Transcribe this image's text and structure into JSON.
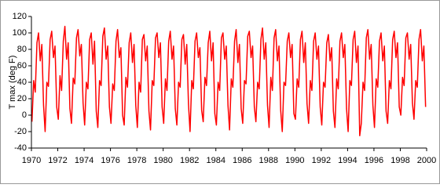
{
  "chart_data": {
    "type": "line",
    "y_label": "T max (deg F)",
    "xlim": [
      1970,
      2000
    ],
    "xticks": [
      1970,
      1972,
      1974,
      1976,
      1978,
      1980,
      1982,
      1984,
      1986,
      1988,
      1990,
      1992,
      1994,
      1996,
      1998,
      2000
    ],
    "ylim": [
      -40,
      120
    ],
    "yticks": [
      -40,
      -20,
      0,
      20,
      40,
      60,
      80,
      100,
      120
    ],
    "grid": false,
    "series": [
      {
        "color": "#ff0000",
        "x": [
          1970.04,
          1970.17,
          1970.29,
          1970.42,
          1970.54,
          1970.67,
          1970.79,
          1970.92,
          1971.04,
          1971.17,
          1971.29,
          1971.42,
          1971.54,
          1971.67,
          1971.79,
          1971.92,
          1972.04,
          1972.17,
          1972.29,
          1972.42,
          1972.54,
          1972.67,
          1972.79,
          1972.92,
          1973.04,
          1973.17,
          1973.29,
          1973.42,
          1973.54,
          1973.67,
          1973.79,
          1973.92,
          1974.04,
          1974.17,
          1974.29,
          1974.42,
          1974.54,
          1974.67,
          1974.79,
          1974.92,
          1975.04,
          1975.17,
          1975.29,
          1975.42,
          1975.54,
          1975.67,
          1975.79,
          1975.92,
          1976.04,
          1976.17,
          1976.29,
          1976.42,
          1976.54,
          1976.67,
          1976.79,
          1976.92,
          1977.04,
          1977.17,
          1977.29,
          1977.42,
          1977.54,
          1977.67,
          1977.79,
          1977.92,
          1978.04,
          1978.17,
          1978.29,
          1978.42,
          1978.54,
          1978.67,
          1978.79,
          1978.92,
          1979.04,
          1979.17,
          1979.29,
          1979.42,
          1979.54,
          1979.67,
          1979.79,
          1979.92,
          1980.04,
          1980.17,
          1980.29,
          1980.42,
          1980.54,
          1980.67,
          1980.79,
          1980.92,
          1981.04,
          1981.17,
          1981.29,
          1981.42,
          1981.54,
          1981.67,
          1981.79,
          1981.92,
          1982.04,
          1982.17,
          1982.29,
          1982.42,
          1982.54,
          1982.67,
          1982.79,
          1982.92,
          1983.04,
          1983.17,
          1983.29,
          1983.42,
          1983.54,
          1983.67,
          1983.79,
          1983.92,
          1984.04,
          1984.17,
          1984.29,
          1984.42,
          1984.54,
          1984.67,
          1984.79,
          1984.92,
          1985.04,
          1985.17,
          1985.29,
          1985.42,
          1985.54,
          1985.67,
          1985.79,
          1985.92,
          1986.04,
          1986.17,
          1986.29,
          1986.42,
          1986.54,
          1986.67,
          1986.79,
          1986.92,
          1987.04,
          1987.17,
          1987.29,
          1987.42,
          1987.54,
          1987.67,
          1987.79,
          1987.92,
          1988.04,
          1988.17,
          1988.29,
          1988.42,
          1988.54,
          1988.67,
          1988.79,
          1988.92,
          1989.04,
          1989.17,
          1989.29,
          1989.42,
          1989.54,
          1989.67,
          1989.79,
          1989.92,
          1990.04,
          1990.17,
          1990.29,
          1990.42,
          1990.54,
          1990.67,
          1990.79,
          1990.92,
          1991.04,
          1991.17,
          1991.29,
          1991.42,
          1991.54,
          1991.67,
          1991.79,
          1991.92,
          1992.04,
          1992.17,
          1992.29,
          1992.42,
          1992.54,
          1992.67,
          1992.79,
          1992.92,
          1993.04,
          1993.17,
          1993.29,
          1993.42,
          1993.54,
          1993.67,
          1993.79,
          1993.92,
          1994.04,
          1994.17,
          1994.29,
          1994.42,
          1994.54,
          1994.67,
          1994.79,
          1994.92,
          1995.04,
          1995.17,
          1995.29,
          1995.42,
          1995.54,
          1995.67,
          1995.79,
          1995.92,
          1996.04,
          1996.17,
          1996.29,
          1996.42,
          1996.54,
          1996.67,
          1996.79,
          1996.92,
          1997.04,
          1997.17,
          1997.29,
          1997.42,
          1997.54,
          1997.67,
          1997.79,
          1997.92,
          1998.04,
          1998.17,
          1998.29,
          1998.42,
          1998.54,
          1998.67,
          1998.79,
          1998.92,
          1999.04,
          1999.17,
          1999.29,
          1999.42,
          1999.54,
          1999.67,
          1999.79,
          1999.92
        ],
        "values": [
          -8,
          42,
          28,
          88,
          100,
          66,
          86,
          12,
          -20,
          40,
          35,
          92,
          102,
          70,
          84,
          10,
          -5,
          48,
          30,
          90,
          108,
          68,
          88,
          8,
          -10,
          45,
          38,
          94,
          104,
          72,
          86,
          15,
          -12,
          40,
          32,
          92,
          100,
          62,
          90,
          5,
          -15,
          42,
          36,
          96,
          106,
          68,
          84,
          10,
          -10,
          38,
          30,
          90,
          104,
          70,
          82,
          0,
          -12,
          46,
          34,
          88,
          100,
          64,
          86,
          12,
          -15,
          40,
          28,
          92,
          98,
          66,
          84,
          5,
          -18,
          42,
          36,
          94,
          100,
          70,
          88,
          10,
          -10,
          44,
          30,
          90,
          102,
          68,
          84,
          8,
          -12,
          40,
          34,
          92,
          98,
          62,
          86,
          14,
          -20,
          42,
          32,
          90,
          100,
          70,
          82,
          6,
          -8,
          46,
          36,
          88,
          102,
          66,
          88,
          2,
          -12,
          40,
          30,
          94,
          100,
          68,
          84,
          12,
          -18,
          44,
          34,
          90,
          104,
          64,
          86,
          8,
          -10,
          42,
          38,
          96,
          102,
          70,
          84,
          10,
          -8,
          40,
          32,
          92,
          106,
          68,
          88,
          12,
          -15,
          46,
          30,
          94,
          104,
          66,
          84,
          6,
          -20,
          40,
          36,
          90,
          100,
          70,
          86,
          2,
          -5,
          44,
          34,
          92,
          102,
          64,
          88,
          14,
          -10,
          42,
          30,
          90,
          100,
          68,
          84,
          10,
          -12,
          40,
          34,
          88,
          98,
          66,
          82,
          5,
          -15,
          44,
          32,
          90,
          100,
          70,
          86,
          8,
          -20,
          42,
          36,
          92,
          102,
          64,
          84,
          -25,
          -10,
          40,
          30,
          94,
          104,
          68,
          86,
          12,
          -15,
          44,
          34,
          90,
          100,
          66,
          84,
          5,
          -10,
          42,
          32,
          92,
          102,
          70,
          88,
          10,
          0,
          46,
          36,
          94,
          100,
          68,
          86,
          15,
          -5,
          42,
          34,
          92,
          104,
          66,
          84,
          10
        ]
      }
    ]
  }
}
